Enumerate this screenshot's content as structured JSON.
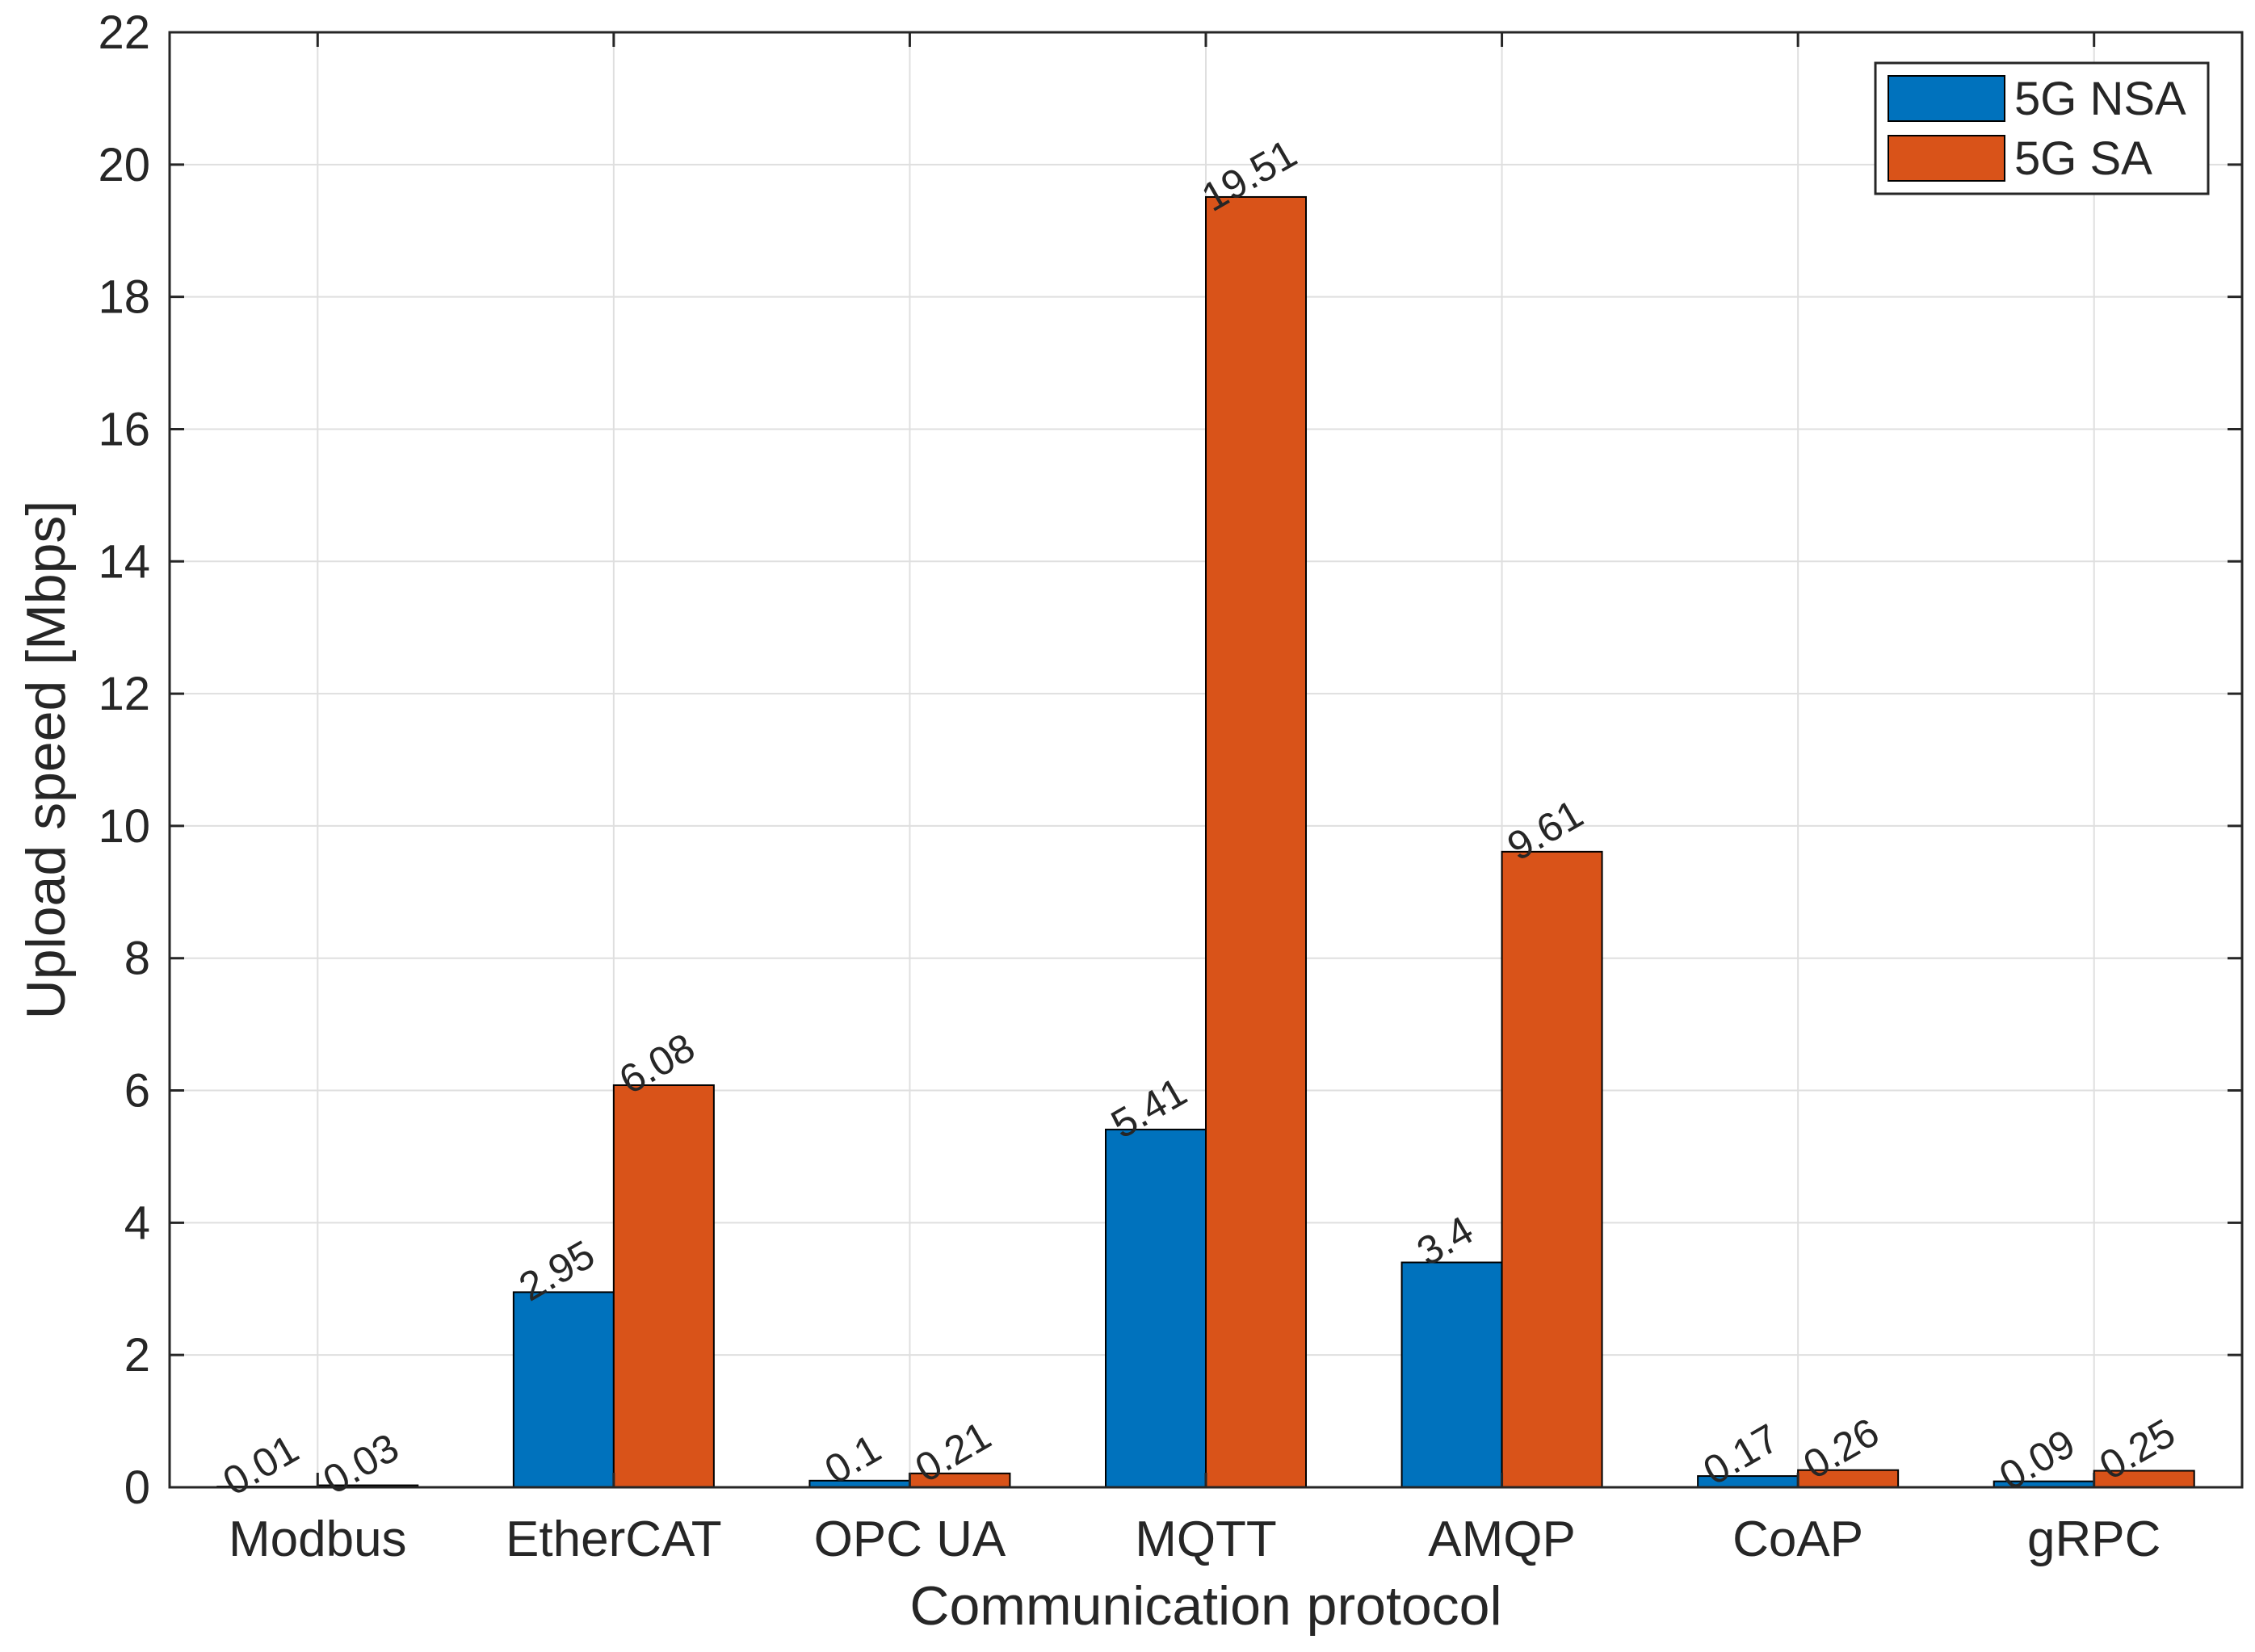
{
  "chart_data": {
    "type": "bar",
    "title": "",
    "xlabel": "Communication protocol",
    "ylabel": "Upload speed [Mbps]",
    "categories": [
      "Modbus",
      "EtherCAT",
      "OPC UA",
      "MQTT",
      "AMQP",
      "CoAP",
      "gRPC"
    ],
    "series": [
      {
        "name": "5G NSA",
        "color": "#0072BD",
        "values": [
          0.01,
          2.95,
          0.1,
          5.41,
          3.4,
          0.17,
          0.09
        ],
        "labels": [
          "0.01",
          "2.95",
          "0.1",
          "5.41",
          "3.4",
          "0.17",
          "0.09"
        ]
      },
      {
        "name": "5G SA",
        "color": "#D95319",
        "values": [
          0.03,
          6.08,
          0.21,
          19.51,
          9.61,
          0.26,
          0.25
        ],
        "labels": [
          "0.03",
          "6.08",
          "0.21",
          "19.51",
          "9.61",
          "0.26",
          "0.25"
        ]
      }
    ],
    "ylim": [
      0,
      22
    ],
    "yticks": [
      0,
      2,
      4,
      6,
      8,
      10,
      12,
      14,
      16,
      18,
      20,
      22
    ],
    "grid": true,
    "legend_position": "top-right"
  }
}
